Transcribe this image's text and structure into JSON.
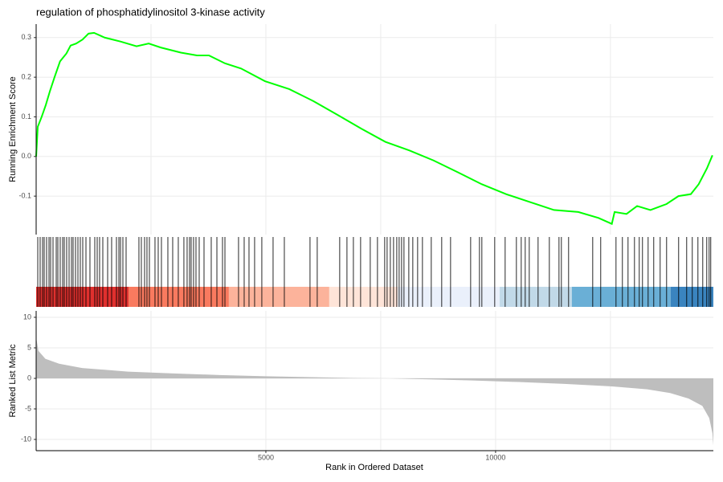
{
  "chart_data": [
    {
      "type": "line",
      "title": "regulation of phosphatidylinositol 3-kinase activity",
      "ylabel": "Running Enrichment Score",
      "color": "#00ff00",
      "x": [
        0,
        35,
        120,
        210,
        300,
        400,
        520,
        660,
        750,
        870,
        1010,
        1140,
        1260,
        1490,
        1835,
        2185,
        2450,
        2710,
        3150,
        3500,
        3760,
        4110,
        4460,
        4980,
        5510,
        6030,
        6560,
        7080,
        7600,
        8130,
        8650,
        9180,
        9700,
        10230,
        10750,
        11270,
        11800,
        12240,
        12530,
        12590,
        12850,
        13080,
        13370,
        13720,
        13980,
        14250,
        14420,
        14600,
        14720
      ],
      "values": [
        0.0,
        0.075,
        0.1,
        0.13,
        0.165,
        0.2,
        0.24,
        0.26,
        0.28,
        0.285,
        0.295,
        0.31,
        0.312,
        0.3,
        0.29,
        0.278,
        0.285,
        0.275,
        0.262,
        0.255,
        0.255,
        0.235,
        0.222,
        0.19,
        0.17,
        0.14,
        0.105,
        0.07,
        0.037,
        0.015,
        -0.01,
        -0.04,
        -0.07,
        -0.095,
        -0.115,
        -0.135,
        -0.14,
        -0.155,
        -0.17,
        -0.14,
        -0.145,
        -0.125,
        -0.135,
        -0.12,
        -0.1,
        -0.095,
        -0.07,
        -0.03,
        0.003
      ],
      "xlim": [
        0,
        14740
      ],
      "ylim": [
        -0.197,
        0.334
      ],
      "yticks": [
        -0.1,
        {
          "value": 0,
          "label": "0.0"
        },
        0.1,
        0.2,
        0.3
      ],
      "x_grid": [
        2500,
        5000,
        7500,
        10000,
        12500
      ]
    },
    {
      "type": "rug",
      "color": "#000000",
      "x": [
        35,
        87,
        140,
        175,
        227,
        280,
        315,
        367,
        437,
        472,
        524,
        577,
        612,
        664,
        717,
        769,
        804,
        857,
        909,
        961,
        1014,
        1084,
        1171,
        1276,
        1329,
        1381,
        1451,
        1556,
        1643,
        1748,
        1801,
        1836,
        1888,
        1958,
        2237,
        2290,
        2360,
        2412,
        2465,
        2587,
        2657,
        2727,
        2867,
        2972,
        3094,
        3216,
        3286,
        3339,
        3374,
        3426,
        3479,
        3549,
        3654,
        3811,
        3934,
        4056,
        4109,
        4405,
        4528,
        4633,
        4755,
        4912,
        5157,
        5402,
        5961,
        6118,
        6607,
        6765,
        6905,
        7062,
        7272,
        7429,
        7586,
        7639,
        7709,
        7779,
        7849,
        7901,
        7954,
        8006,
        8111,
        8198,
        8303,
        8408,
        8600,
        8827,
        9020,
        9457,
        9649,
        9701,
        9981,
        10208,
        10453,
        10558,
        10645,
        10733,
        10925,
        11170,
        11380,
        11432,
        11589,
        12114,
        12288,
        12621,
        12760,
        12883,
        13023,
        13127,
        13197,
        13320,
        13442,
        13582,
        13722,
        13984,
        14159,
        14281,
        14404,
        14509,
        14596,
        14648,
        14683
      ],
      "bands": [
        {
          "from": 0,
          "to": 2010,
          "color": "#e0302e"
        },
        {
          "from": 2010,
          "to": 4195,
          "color": "#f97a5f"
        },
        {
          "from": 4195,
          "to": 6380,
          "color": "#fcb39b"
        },
        {
          "from": 6380,
          "to": 7870,
          "color": "#fee4d8"
        },
        {
          "from": 7870,
          "to": 10090,
          "color": "#eaf0fb"
        },
        {
          "from": 10090,
          "to": 11660,
          "color": "#c1d9e8"
        },
        {
          "from": 11660,
          "to": 13810,
          "color": "#6aafd6"
        },
        {
          "from": 13810,
          "to": 14740,
          "color": "#3a84bf"
        }
      ],
      "xlim": [
        0,
        14740
      ]
    },
    {
      "type": "area",
      "ylabel": "Ranked List Metric",
      "xlabel": "Rank in Ordered Dataset",
      "color": "#bebebe",
      "x": [
        0,
        50,
        200,
        500,
        1000,
        2000,
        3000,
        4000,
        5000,
        6000,
        7000,
        7700,
        8500,
        9500,
        10500,
        11500,
        12500,
        13300,
        13800,
        14200,
        14500,
        14650,
        14720,
        14740
      ],
      "values": [
        6.7,
        4.5,
        3.2,
        2.4,
        1.7,
        1.1,
        0.8,
        0.55,
        0.35,
        0.2,
        0.05,
        0,
        -0.15,
        -0.35,
        -0.6,
        -0.9,
        -1.3,
        -1.8,
        -2.4,
        -3.3,
        -4.5,
        -6.5,
        -9,
        -11
      ],
      "xlim": [
        0,
        14740
      ],
      "ylim": [
        -11.84,
        11.05
      ],
      "yticks": [
        -10,
        -5,
        0,
        5,
        10
      ],
      "xticks": [
        5000,
        10000
      ],
      "x_grid": [
        2500,
        5000,
        7500,
        10000,
        12500
      ]
    }
  ]
}
